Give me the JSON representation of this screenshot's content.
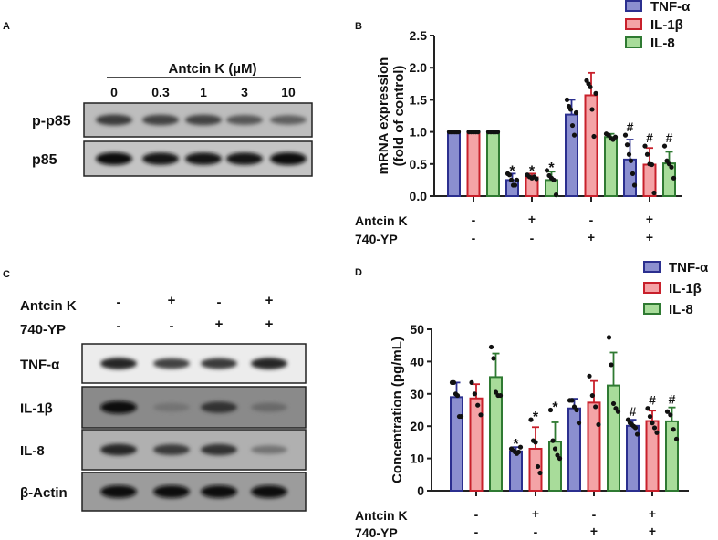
{
  "panels": {
    "A": {
      "label": "A",
      "header": "Antcin K (µM)",
      "lanes": [
        "0",
        "0.3",
        "1",
        "3",
        "10"
      ],
      "blots": [
        {
          "name": "p-p85",
          "band_intensity": [
            0.75,
            0.7,
            0.7,
            0.6,
            0.55
          ]
        },
        {
          "name": "p85",
          "band_intensity": [
            1.0,
            0.95,
            0.95,
            0.95,
            1.0
          ]
        }
      ]
    },
    "C": {
      "label": "C",
      "conditions": [
        {
          "name": "Antcin K",
          "signs": [
            "-",
            "+",
            "-",
            "+"
          ]
        },
        {
          "name": "740-YP",
          "signs": [
            "-",
            "-",
            "+",
            "+"
          ]
        }
      ],
      "blots": [
        {
          "name": "TNF-α",
          "band_intensity": [
            0.85,
            0.7,
            0.75,
            0.85
          ]
        },
        {
          "name": "IL-1β",
          "band_intensity": [
            1.0,
            0.45,
            0.8,
            0.5
          ]
        },
        {
          "name": "IL-8",
          "band_intensity": [
            0.85,
            0.75,
            0.8,
            0.45
          ]
        },
        {
          "name": "β-Actin",
          "band_intensity": [
            1.0,
            1.0,
            1.0,
            1.0
          ]
        }
      ]
    }
  },
  "colors": {
    "TNF-α": {
      "fill": "#8b8fcf",
      "stroke": "#2b2f8f"
    },
    "IL-1β": {
      "fill": "#f4a3a6",
      "stroke": "#c8202b"
    },
    "IL-8": {
      "fill": "#a8dc9a",
      "stroke": "#2f7a32"
    }
  },
  "chart_data": [
    {
      "panel": "B",
      "type": "bar",
      "ylabel": "mRNA expression\n(fold of control)",
      "ylim": [
        0,
        2.5
      ],
      "yticks": [
        "0.0",
        "0.5",
        "1.0",
        "1.5",
        "2.0",
        "2.5"
      ],
      "legend_placement": "top-right",
      "conditions": [
        {
          "name": "Antcin K",
          "signs": [
            "-",
            "+",
            "-",
            "+"
          ]
        },
        {
          "name": "740-YP",
          "signs": [
            "-",
            "-",
            "+",
            "+"
          ]
        }
      ],
      "series": [
        {
          "name": "TNF-α",
          "values": [
            1.0,
            0.25,
            1.27,
            0.57
          ],
          "error_upper": [
            1.0,
            0.35,
            1.5,
            0.88
          ],
          "points": [
            [
              1,
              1,
              1,
              1,
              1,
              1
            ],
            [
              0.35,
              0.33,
              0.25,
              0.17,
              0.17,
              0.25
            ],
            [
              1.5,
              1.4,
              1.35,
              1.1,
              0.95,
              1.3
            ],
            [
              0.95,
              0.8,
              0.65,
              0.55,
              0.35,
              0.17
            ]
          ],
          "markers": [
            "",
            "*",
            "",
            "#"
          ]
        },
        {
          "name": "IL-1β",
          "values": [
            1.0,
            0.29,
            1.57,
            0.49
          ],
          "error_upper": [
            1.0,
            0.35,
            1.92,
            0.75
          ],
          "points": [
            [
              1,
              1,
              1,
              1,
              1
            ],
            [
              0.33,
              0.3,
              0.28,
              0.3,
              0.27
            ],
            [
              1.8,
              1.75,
              1.7,
              1.35,
              0.93,
              1.6
            ],
            [
              0.78,
              0.65,
              0.5,
              0.49,
              0.05
            ]
          ],
          "markers": [
            "",
            "*",
            "",
            "#"
          ]
        },
        {
          "name": "IL-8",
          "values": [
            1.0,
            0.25,
            0.92,
            0.51
          ],
          "error_upper": [
            1.0,
            0.38,
            0.97,
            0.69
          ],
          "points": [
            [
              1,
              1,
              1,
              1,
              1
            ],
            [
              0.4,
              0.32,
              0.28,
              0.25,
              0.02
            ],
            [
              0.97,
              0.95,
              0.9,
              0.88,
              0.92
            ],
            [
              0.78,
              0.55,
              0.5,
              0.45,
              0.28
            ]
          ],
          "markers": [
            "",
            "*",
            "",
            "#"
          ]
        }
      ]
    },
    {
      "panel": "D",
      "type": "bar",
      "ylabel": "Concentration (pg/mL)",
      "ylim": [
        0,
        50
      ],
      "yticks": [
        "0",
        "10",
        "20",
        "30",
        "40",
        "50"
      ],
      "legend_placement": "top-right",
      "conditions": [
        {
          "name": "Antcin K",
          "signs": [
            "-",
            "+",
            "-",
            "+"
          ]
        },
        {
          "name": "740-YP",
          "signs": [
            "-",
            "-",
            "+",
            "+"
          ]
        }
      ],
      "series": [
        {
          "name": "TNF-α",
          "values": [
            29.0,
            12.2,
            25.5,
            20.1
          ],
          "error_upper": [
            33.5,
            13.5,
            28.5,
            22.0
          ],
          "points": [
            [
              33.5,
              33.5,
              30,
              29.5,
              23,
              23
            ],
            [
              13,
              12.5,
              12,
              11.5,
              12,
              13.5
            ],
            [
              28,
              28,
              26,
              25,
              21
            ],
            [
              22,
              21,
              20.5,
              20,
              19.5,
              17.5
            ]
          ],
          "markers": [
            "",
            "*",
            "",
            "#"
          ]
        },
        {
          "name": "IL-1β",
          "values": [
            28.6,
            13.0,
            27.3,
            21.6
          ],
          "error_upper": [
            33.0,
            19.7,
            34.0,
            24.8
          ],
          "points": [
            [
              33.5,
              30,
              26.5,
              23.5
            ],
            [
              22,
              15.5,
              15,
              7.5,
              5.5
            ],
            [
              35.5,
              29.5,
              26,
              20.5
            ],
            [
              25.5,
              23,
              21,
              19.5,
              18
            ]
          ],
          "markers": [
            "",
            "*",
            "",
            "#"
          ]
        },
        {
          "name": "IL-8",
          "values": [
            35.2,
            15.2,
            32.6,
            21.5
          ],
          "error_upper": [
            42.5,
            21.2,
            42.8,
            25.8
          ],
          "points": [
            [
              44.5,
              41,
              30.5,
              29.5,
              29.5
            ],
            [
              25,
              15.5,
              13,
              11,
              10
            ],
            [
              47.5,
              39,
              27,
              25.5,
              24.5
            ],
            [
              24.5,
              23.5,
              19,
              16
            ]
          ],
          "markers": [
            "",
            "*",
            "",
            "#"
          ]
        }
      ]
    }
  ]
}
